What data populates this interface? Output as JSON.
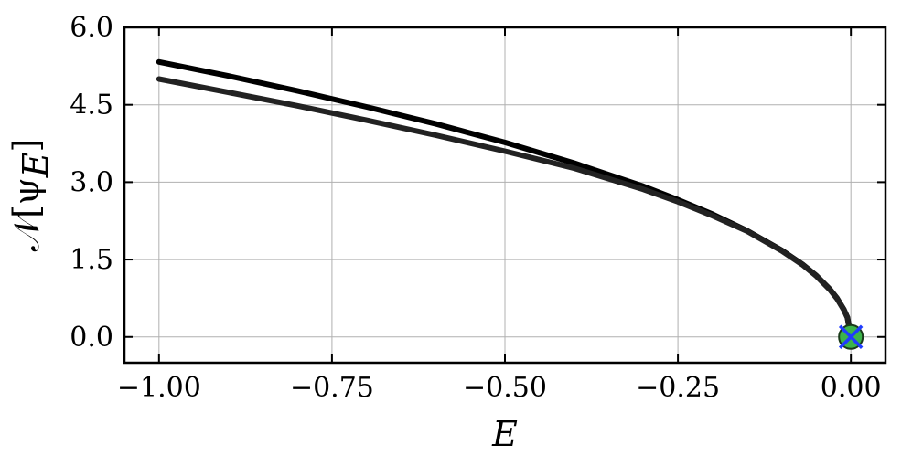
{
  "chart_data": {
    "type": "line",
    "xlabel": "E",
    "ylabel_main": "𝒩[ψ",
    "ylabel_sub": "E",
    "ylabel_close": "]",
    "xlim": [
      -1.05,
      0.05
    ],
    "ylim": [
      -0.5,
      6.0
    ],
    "xticks": [
      -1.0,
      -0.75,
      -0.5,
      -0.25,
      0.0
    ],
    "xtick_labels": [
      "−1.00",
      "−0.75",
      "−0.50",
      "−0.25",
      "0.00"
    ],
    "yticks": [
      0.0,
      1.5,
      3.0,
      4.5,
      6.0
    ],
    "ytick_labels": [
      "0.0",
      "1.5",
      "3.0",
      "4.5",
      "6.0"
    ],
    "grid": true,
    "series": [
      {
        "color": "#000000",
        "x": [
          -1.0,
          -0.9,
          -0.8,
          -0.7,
          -0.6,
          -0.5,
          -0.4,
          -0.3,
          -0.25,
          -0.2,
          -0.15,
          -0.1,
          -0.07,
          -0.05,
          -0.03,
          -0.02,
          -0.01,
          -0.005,
          0.0
        ],
        "y": [
          5.33,
          5.06,
          4.77,
          4.46,
          4.13,
          3.77,
          3.37,
          2.92,
          2.66,
          2.38,
          2.06,
          1.68,
          1.41,
          1.19,
          0.92,
          0.75,
          0.53,
          0.38,
          0.0
        ]
      },
      {
        "color": "#222222",
        "x": [
          -1.0,
          -0.9,
          -0.8,
          -0.7,
          -0.6,
          -0.5,
          -0.4,
          -0.3,
          -0.25,
          -0.2,
          -0.15,
          -0.1,
          -0.07,
          -0.05,
          -0.03,
          -0.02,
          -0.01,
          -0.005,
          0.0
        ],
        "y": [
          5.0,
          4.74,
          4.48,
          4.2,
          3.91,
          3.6,
          3.27,
          2.86,
          2.62,
          2.35,
          2.05,
          1.67,
          1.4,
          1.18,
          0.91,
          0.74,
          0.52,
          0.37,
          0.0
        ]
      }
    ],
    "markers": [
      {
        "x": 0.0,
        "y": 0.0,
        "shape": "circle",
        "fill": "#3cb44b",
        "edge": "#1a3a1a"
      },
      {
        "x": 0.0,
        "y": 0.0,
        "shape": "x",
        "color": "#1f3cff"
      }
    ]
  }
}
